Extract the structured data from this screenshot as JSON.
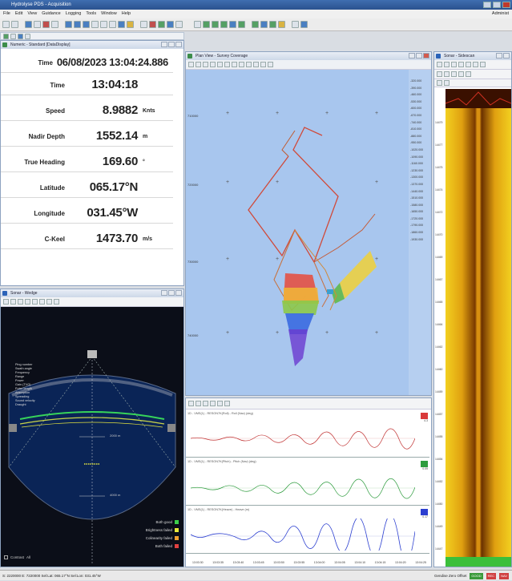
{
  "window": {
    "title": "Hydrolyse PDS - Acquisition"
  },
  "menu": [
    "File",
    "Edit",
    "View",
    "Guidance",
    "Logging",
    "Tools",
    "Window",
    "Help"
  ],
  "user_label": "Administ",
  "numeric": {
    "tab_label": "Numeric - Standard [DataDisplay]",
    "rows": [
      {
        "label": "Time",
        "value": "06/08/2023 13:04:24.886",
        "unit": ""
      },
      {
        "label": "Time",
        "value": "13:04:18",
        "unit": ""
      },
      {
        "label": "Speed",
        "value": "8.9882",
        "unit": "Knts"
      },
      {
        "label": "Nadir Depth",
        "value": "1552.14",
        "unit": "m"
      },
      {
        "label": "True Heading",
        "value": "169.60",
        "unit": "°"
      },
      {
        "label": "Latitude",
        "value": "065.17°N",
        "unit": ""
      },
      {
        "label": "Longitude",
        "value": "031.45°W",
        "unit": ""
      },
      {
        "label": "C-Keel",
        "value": "1473.70",
        "unit": "m/s"
      }
    ]
  },
  "wedge": {
    "title": "Sonar - Wedge",
    "info": [
      "Ping number",
      "Swath angle",
      "Frequency",
      "Range",
      "Power",
      "Gain (TVG)",
      "Pulse length",
      "Absorption",
      "Spreading",
      "Sound velocity",
      "Draught"
    ],
    "range_marks": [
      "2000 m",
      "4000 m"
    ],
    "legend": [
      {
        "label": "Both good",
        "color": "#3ccf4a"
      },
      {
        "label": "Brightness failed",
        "color": "#e8e83a"
      },
      {
        "label": "Colinearity failed",
        "color": "#f0a030"
      },
      {
        "label": "Both failed",
        "color": "#e04040"
      }
    ],
    "contrast_label": "Contrast",
    "contrast_value": "All"
  },
  "plan": {
    "title": "Plan View - Survey Coverage",
    "y_labels": [
      "710000",
      "720000",
      "730000",
      "740000"
    ],
    "depth_scale": [
      "-320.000",
      "-390.000",
      "-460.000",
      "-530.000",
      "-600.000",
      "-670.000",
      "-740.000",
      "-810.000",
      "-880.000",
      "-950.000",
      "-1020.000",
      "-1090.000",
      "-1160.000",
      "-1230.000",
      "-1300.000",
      "-1370.000",
      "-1440.000",
      "-1510.000",
      "-1580.000",
      "-1650.000",
      "-1720.000",
      "-1790.000",
      "-1860.000",
      "-1930.000"
    ]
  },
  "timeseries": {
    "strips": [
      {
        "header": "1D - VMS(1) - RESON7K(Roll) - Roll (Nav) (deg)",
        "tag_color": "#d93a3a",
        "value": "4.3"
      },
      {
        "header": "1D - VMS(1) - RESON7K(Pitch) - Pitch (Nav) (deg)",
        "tag_color": "#2e9c3e",
        "value": "0.09"
      },
      {
        "header": "1D - VMS(1) - RESON7K(Heave) - Heave (m)",
        "tag_color": "#2c3fd0",
        "value": "0.17"
      }
    ],
    "time_ticks": [
      "13:03:30",
      "13:03:35",
      "13:03:40",
      "13:03:45",
      "13:03:50",
      "13:03:55",
      "13:04:00",
      "13:04:05",
      "13:04:10",
      "13:04:15",
      "13:04:20",
      "13:04:25"
    ]
  },
  "sidescan": {
    "title": "Sonar - Sidescan",
    "depth_labels": [
      "14479",
      "14477",
      "14475",
      "14474",
      "14472",
      "14470",
      "14469",
      "14467",
      "14465",
      "14464",
      "14462",
      "14460",
      "14459",
      "14457",
      "14455",
      "14454",
      "14452",
      "14450",
      "14449",
      "14447"
    ]
  },
  "status": {
    "left": "S: 2220000 E: 7220000 Sel:Lat: 065.17°N Sel:Lon: 031.45°W",
    "right_label": "Gendise Zero Offset",
    "badges": [
      {
        "label": "GOOD",
        "color": "#3a9a3a"
      },
      {
        "label": "REC",
        "color": "#d04040"
      },
      {
        "label": "NAV",
        "color": "#d04040"
      }
    ]
  }
}
